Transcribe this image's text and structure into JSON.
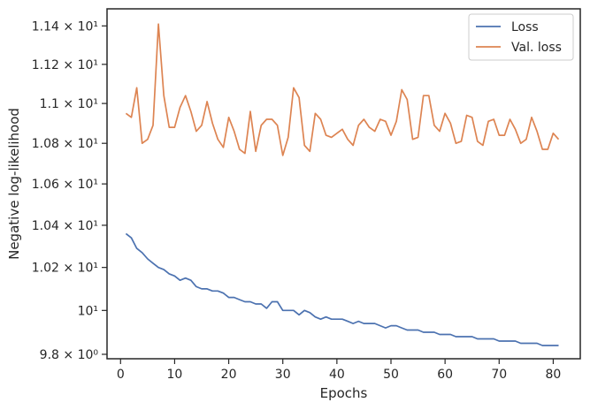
{
  "chart_data": {
    "type": "line",
    "xlabel": "Epochs",
    "ylabel": "Negative log-likelihood",
    "xlim": [
      -2.5,
      85
    ],
    "ylim": [
      9.78,
      11.49
    ],
    "y_scale": "log",
    "grid": false,
    "legend_position": "top-right",
    "x_ticks": [
      {
        "value": 0,
        "label": "0"
      },
      {
        "value": 10,
        "label": "10"
      },
      {
        "value": 20,
        "label": "20"
      },
      {
        "value": 30,
        "label": "30"
      },
      {
        "value": 40,
        "label": "40"
      },
      {
        "value": 50,
        "label": "50"
      },
      {
        "value": 60,
        "label": "60"
      },
      {
        "value": 70,
        "label": "70"
      },
      {
        "value": 80,
        "label": "80"
      }
    ],
    "y_ticks": [
      {
        "value": 9.8,
        "label": "9.8 × 10⁰"
      },
      {
        "value": 10.0,
        "label": "10¹"
      },
      {
        "value": 10.2,
        "label": "1.02 × 10¹"
      },
      {
        "value": 10.4,
        "label": "1.04 × 10¹"
      },
      {
        "value": 10.6,
        "label": "1.06 × 10¹"
      },
      {
        "value": 10.8,
        "label": "1.08 × 10¹"
      },
      {
        "value": 11.0,
        "label": "1.1 × 10¹"
      },
      {
        "value": 11.2,
        "label": "1.12 × 10¹"
      },
      {
        "value": 11.4,
        "label": "1.14 × 10¹"
      }
    ],
    "series": [
      {
        "name": "Loss",
        "color": "#4c72b0",
        "x": [
          1,
          2,
          3,
          4,
          5,
          6,
          7,
          8,
          9,
          10,
          11,
          12,
          13,
          14,
          15,
          16,
          17,
          18,
          19,
          20,
          21,
          22,
          23,
          24,
          25,
          26,
          27,
          28,
          29,
          30,
          31,
          32,
          33,
          34,
          35,
          36,
          37,
          38,
          39,
          40,
          41,
          42,
          43,
          44,
          45,
          46,
          47,
          48,
          49,
          50,
          51,
          52,
          53,
          54,
          55,
          56,
          57,
          58,
          59,
          60,
          61,
          62,
          63,
          64,
          65,
          66,
          67,
          68,
          69,
          70,
          71,
          72,
          73,
          74,
          75,
          76,
          77,
          78,
          79,
          80,
          81
        ],
        "values": [
          10.36,
          10.34,
          10.29,
          10.27,
          10.24,
          10.22,
          10.2,
          10.19,
          10.17,
          10.16,
          10.14,
          10.15,
          10.14,
          10.11,
          10.1,
          10.1,
          10.09,
          10.09,
          10.08,
          10.06,
          10.06,
          10.05,
          10.04,
          10.04,
          10.03,
          10.03,
          10.01,
          10.04,
          10.04,
          10.0,
          10.0,
          10.0,
          9.98,
          10.0,
          9.99,
          9.97,
          9.96,
          9.97,
          9.96,
          9.96,
          9.96,
          9.95,
          9.94,
          9.95,
          9.94,
          9.94,
          9.94,
          9.93,
          9.92,
          9.93,
          9.93,
          9.92,
          9.91,
          9.91,
          9.91,
          9.9,
          9.9,
          9.9,
          9.89,
          9.89,
          9.89,
          9.88,
          9.88,
          9.88,
          9.88,
          9.87,
          9.87,
          9.87,
          9.87,
          9.86,
          9.86,
          9.86,
          9.86,
          9.85,
          9.85,
          9.85,
          9.85,
          9.84,
          9.84,
          9.84,
          9.84
        ]
      },
      {
        "name": "Val. loss",
        "color": "#dd8452",
        "x": [
          1,
          2,
          3,
          4,
          5,
          6,
          7,
          8,
          9,
          10,
          11,
          12,
          13,
          14,
          15,
          16,
          17,
          18,
          19,
          20,
          21,
          22,
          23,
          24,
          25,
          26,
          27,
          28,
          29,
          30,
          31,
          32,
          33,
          34,
          35,
          36,
          37,
          38,
          39,
          40,
          41,
          42,
          43,
          44,
          45,
          46,
          47,
          48,
          49,
          50,
          51,
          52,
          53,
          54,
          55,
          56,
          57,
          58,
          59,
          60,
          61,
          62,
          63,
          64,
          65,
          66,
          67,
          68,
          69,
          70,
          71,
          72,
          73,
          74,
          75,
          76,
          77,
          78,
          79,
          80,
          81
        ],
        "values": [
          10.95,
          10.93,
          11.08,
          10.8,
          10.82,
          10.89,
          11.41,
          11.04,
          10.88,
          10.88,
          10.98,
          11.04,
          10.96,
          10.86,
          10.89,
          11.01,
          10.9,
          10.82,
          10.78,
          10.93,
          10.86,
          10.77,
          10.75,
          10.96,
          10.76,
          10.89,
          10.92,
          10.92,
          10.89,
          10.74,
          10.83,
          11.08,
          11.03,
          10.79,
          10.76,
          10.95,
          10.92,
          10.84,
          10.83,
          10.85,
          10.87,
          10.82,
          10.79,
          10.89,
          10.92,
          10.88,
          10.86,
          10.92,
          10.91,
          10.84,
          10.91,
          11.07,
          11.02,
          10.82,
          10.83,
          11.04,
          11.04,
          10.89,
          10.86,
          10.95,
          10.9,
          10.8,
          10.81,
          10.94,
          10.93,
          10.81,
          10.79,
          10.91,
          10.92,
          10.84,
          10.84,
          10.92,
          10.87,
          10.8,
          10.82,
          10.93,
          10.86,
          10.77,
          10.77,
          10.85,
          10.82
        ]
      }
    ]
  }
}
